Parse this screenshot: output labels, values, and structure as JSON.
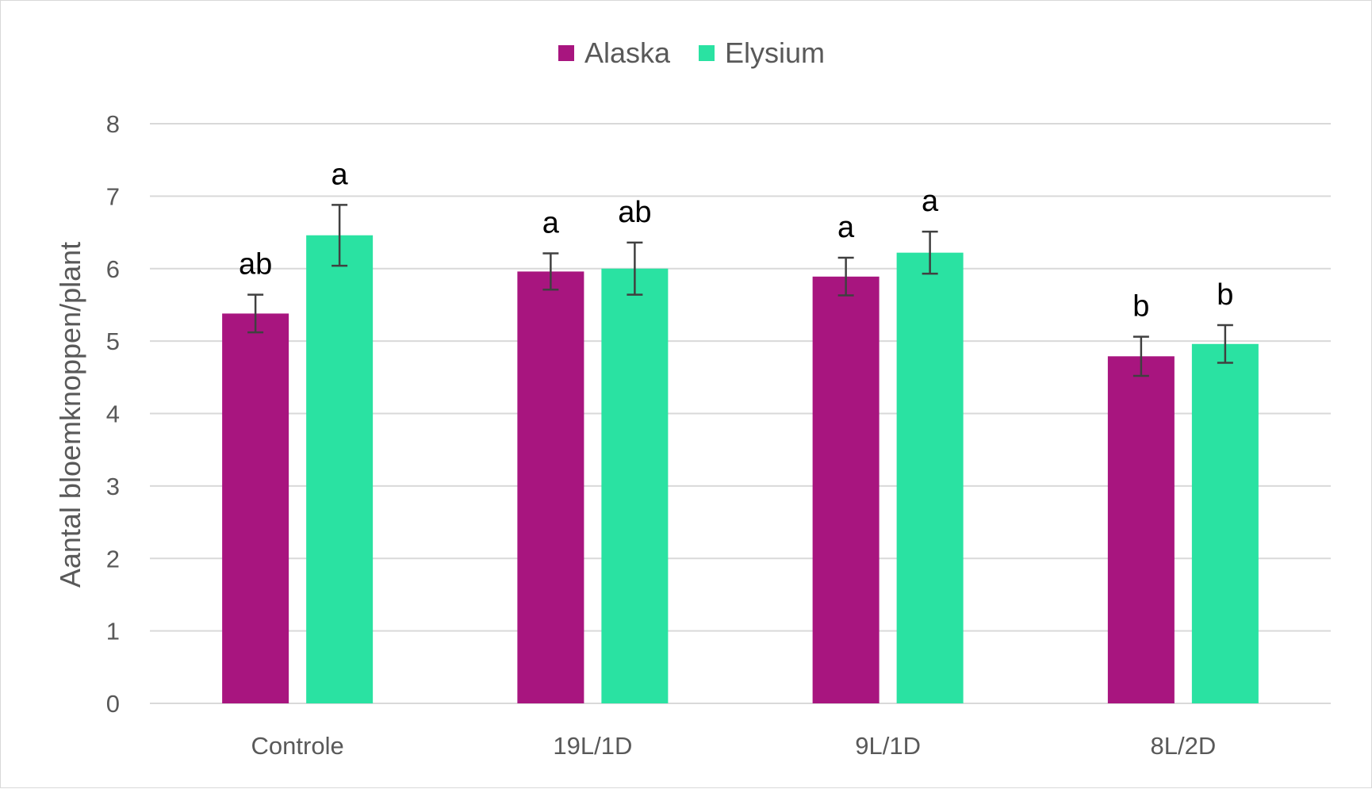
{
  "chart_data": {
    "type": "bar",
    "title": "",
    "xlabel": "",
    "ylabel": "Aantal bloemknoppen/plant",
    "ylim": [
      0,
      8
    ],
    "yticks": [
      0,
      1,
      2,
      3,
      4,
      5,
      6,
      7,
      8
    ],
    "grid": true,
    "legend_position": "top-center",
    "categories": [
      "Controle",
      "19L/1D",
      "9L/1D",
      "8L/2D"
    ],
    "series": [
      {
        "name": "Alaska",
        "color": "#A8157F",
        "values": [
          5.38,
          5.96,
          5.89,
          4.79
        ],
        "errors": [
          0.26,
          0.25,
          0.26,
          0.27
        ],
        "labels": [
          "ab",
          "a",
          "a",
          "b"
        ]
      },
      {
        "name": "Elysium",
        "color": "#2AE2A2",
        "values": [
          6.46,
          6.0,
          6.22,
          4.96
        ],
        "errors": [
          0.42,
          0.36,
          0.29,
          0.26
        ],
        "labels": [
          "a",
          "ab",
          "a",
          "b"
        ]
      }
    ]
  }
}
